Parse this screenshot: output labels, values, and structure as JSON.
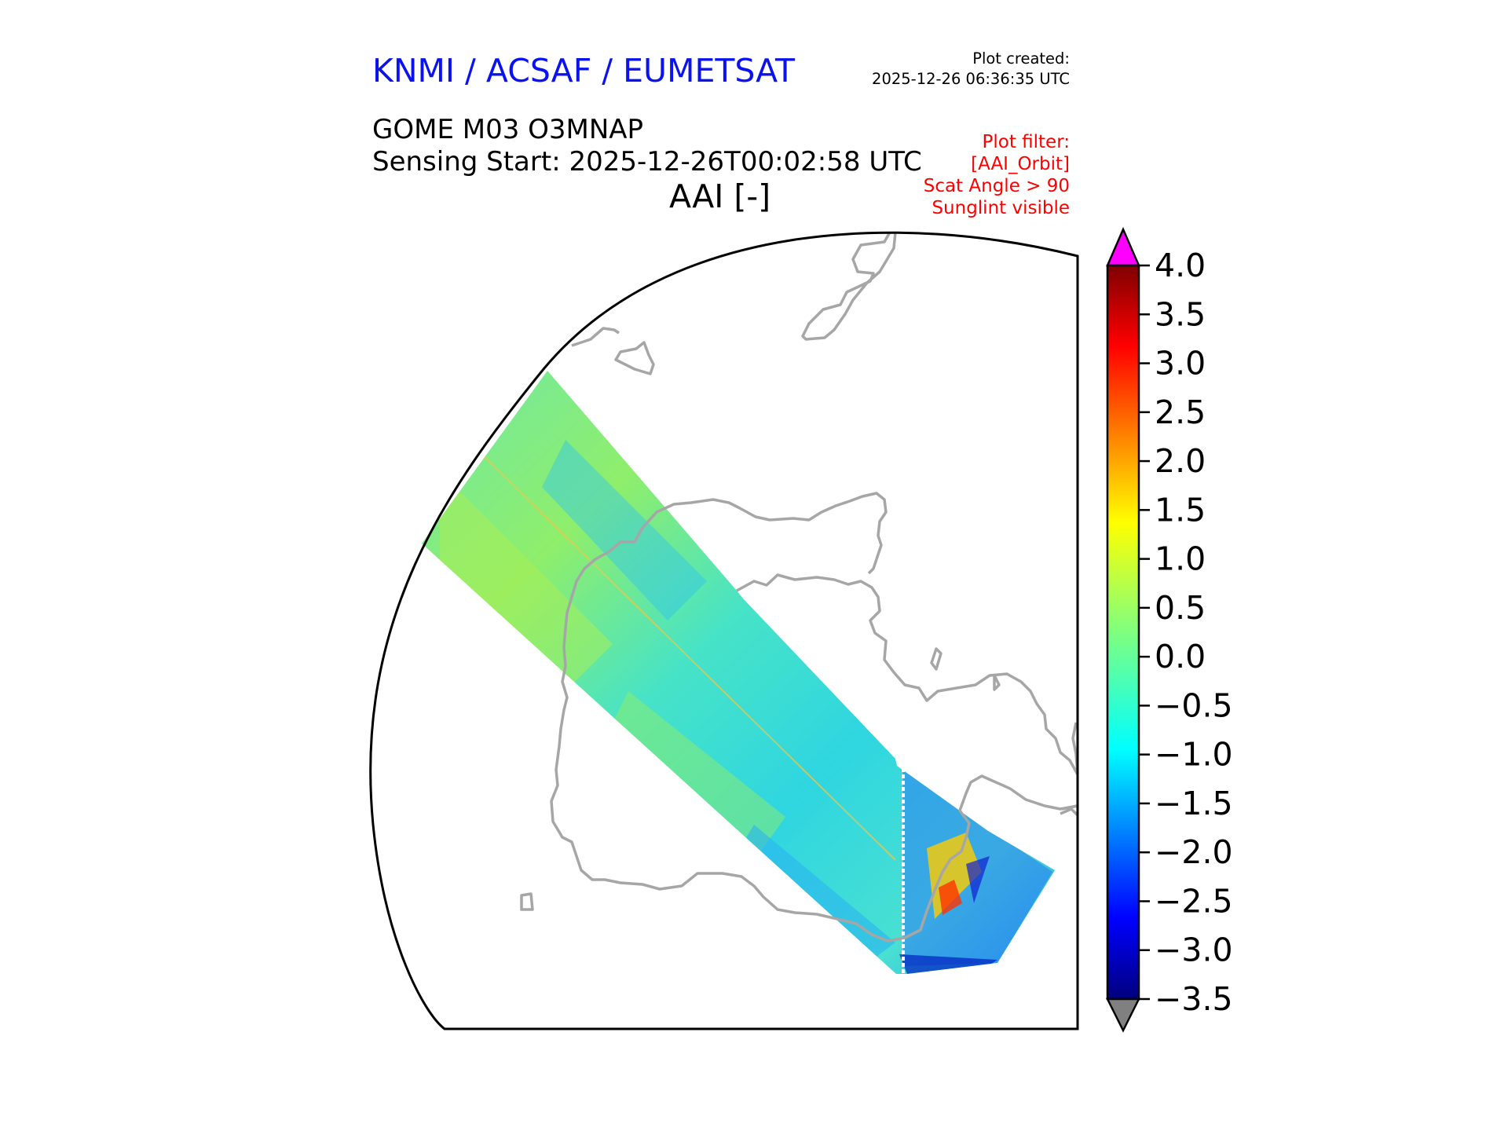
{
  "header": {
    "brand": "KNMI / ACSAF / EUMETSAT",
    "plot_created_label": "Plot created:",
    "plot_created_value": "2025-12-26 06:36:35 UTC",
    "product": "GOME M03 O3MNAP",
    "sensing_start": "Sensing Start: 2025-12-26T00:02:58 UTC",
    "variable_title": "AAI [-]"
  },
  "filter": {
    "lines": [
      "Plot filter:",
      "[AAI_Orbit]",
      "Scat Angle > 90",
      "Sunglint visible"
    ]
  },
  "colorbar": {
    "min": -3.5,
    "max": 4.0,
    "ticks": [
      "4.0",
      "3.5",
      "3.0",
      "2.5",
      "2.0",
      "1.5",
      "1.0",
      "0.5",
      "0.0",
      "−0.5",
      "−1.0",
      "−1.5",
      "−2.0",
      "−2.5",
      "−3.0",
      "−3.5"
    ],
    "colormap": "jet",
    "over_color": "#ff00ff",
    "under_color": "#808080"
  },
  "map": {
    "projection": "polar stereographic (south)",
    "coastline_color": "#a6a6a6",
    "dominant_swath_value_range": [
      -1.0,
      1.0
    ],
    "anomaly_max_value": 3.5,
    "anomaly_min_value": -3.0
  },
  "colors": {
    "brand": "#0a12f0",
    "filter": "#ff0000"
  }
}
